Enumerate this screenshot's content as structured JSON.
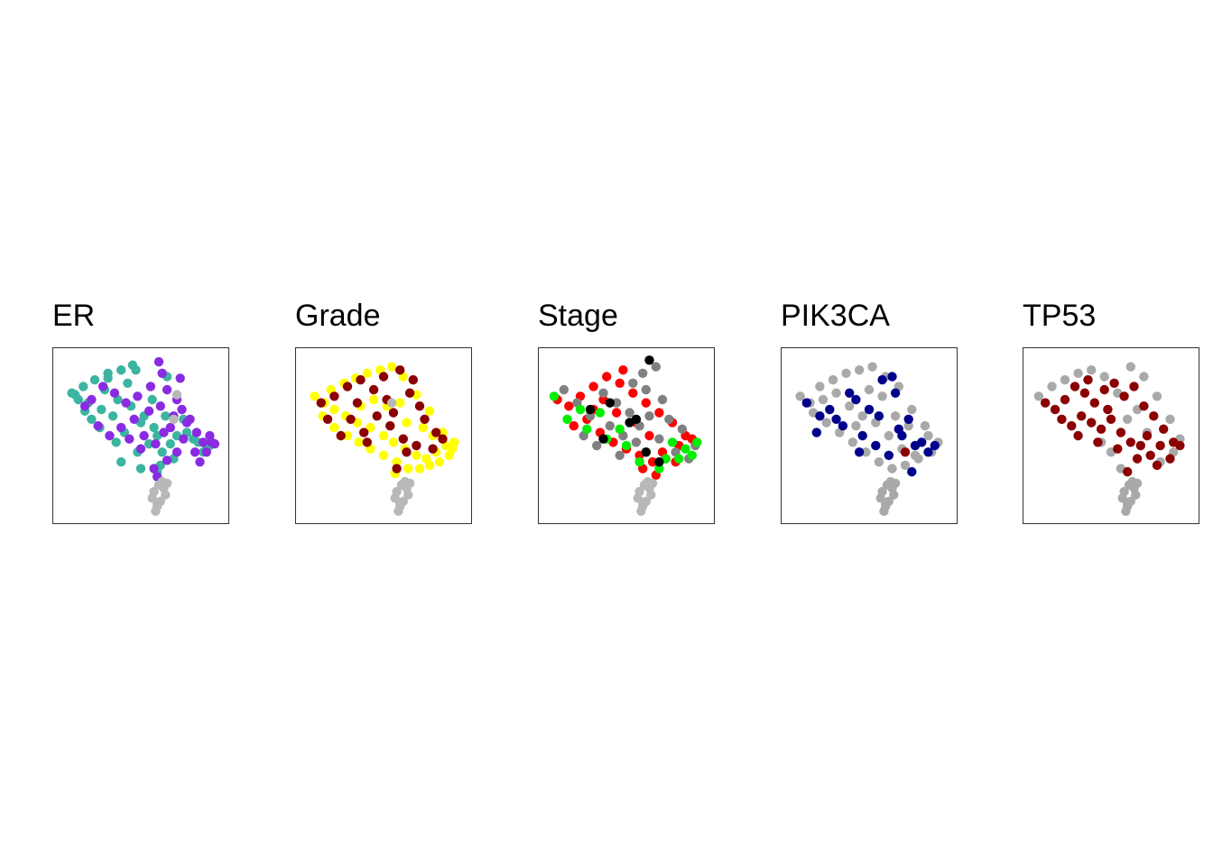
{
  "chart_data": [
    {
      "type": "scatter",
      "title": "ER",
      "xlabel": "",
      "ylabel": "",
      "axes_visible": false,
      "grid": false,
      "legend": "none",
      "series": [
        {
          "color": "#3BB5A0",
          "x": [
            0.1,
            0.15,
            0.22,
            0.3,
            0.38,
            0.45,
            0.18,
            0.26,
            0.33,
            0.5,
            0.58,
            0.2,
            0.12,
            0.28,
            0.36,
            0.44,
            0.52,
            0.6,
            0.25,
            0.4,
            0.55,
            0.63,
            0.68,
            0.48,
            0.35,
            0.72,
            0.78,
            0.82,
            0.65,
            0.57,
            0.3,
            0.42,
            0.7,
            0.85,
            0.9,
            0.62,
            0.5,
            0.38,
            0.16,
            0.08,
            0.47,
            0.66,
            0.76,
            0.88,
            0.92,
            0.6
          ],
          "y": [
            0.75,
            0.8,
            0.84,
            0.88,
            0.9,
            0.93,
            0.7,
            0.66,
            0.62,
            0.58,
            0.55,
            0.6,
            0.72,
            0.78,
            0.72,
            0.68,
            0.62,
            0.5,
            0.55,
            0.52,
            0.45,
            0.4,
            0.45,
            0.4,
            0.46,
            0.5,
            0.52,
            0.48,
            0.62,
            0.72,
            0.85,
            0.82,
            0.36,
            0.46,
            0.42,
            0.32,
            0.3,
            0.34,
            0.65,
            0.76,
            0.9,
            0.86,
            0.6,
            0.4,
            0.44,
            0.28
          ]
        },
        {
          "color": "#8A2BE2",
          "x": [
            0.2,
            0.27,
            0.34,
            0.41,
            0.48,
            0.56,
            0.63,
            0.61,
            0.66,
            0.72,
            0.75,
            0.8,
            0.84,
            0.88,
            0.93,
            0.9,
            0.78,
            0.7,
            0.55,
            0.46,
            0.38,
            0.31,
            0.24,
            0.16,
            0.52,
            0.59,
            0.68,
            0.76,
            0.83,
            0.86,
            0.72,
            0.64,
            0.5,
            0.43,
            0.6,
            0.58,
            0.66,
            0.92,
            0.95,
            0.74,
            0.62
          ],
          "y": [
            0.72,
            0.8,
            0.76,
            0.7,
            0.74,
            0.8,
            0.88,
            0.95,
            0.78,
            0.72,
            0.66,
            0.6,
            0.52,
            0.46,
            0.46,
            0.4,
            0.58,
            0.62,
            0.65,
            0.6,
            0.55,
            0.5,
            0.56,
            0.68,
            0.5,
            0.45,
            0.55,
            0.48,
            0.4,
            0.34,
            0.4,
            0.52,
            0.42,
            0.48,
            0.25,
            0.3,
            0.35,
            0.5,
            0.45,
            0.85,
            0.68
          ]
        },
        {
          "color": "#B8B8B8",
          "x": [
            0.63,
            0.64,
            0.65,
            0.62,
            0.6,
            0.59,
            0.61,
            0.58,
            0.57,
            0.6,
            0.66,
            0.72,
            0.7
          ],
          "y": [
            0.22,
            0.18,
            0.14,
            0.1,
            0.07,
            0.04,
            0.2,
            0.16,
            0.12,
            0.09,
            0.21,
            0.75,
            0.6
          ]
        }
      ]
    },
    {
      "type": "scatter",
      "title": "Grade",
      "xlabel": "",
      "ylabel": "",
      "axes_visible": false,
      "grid": false,
      "legend": "none",
      "series": [
        {
          "color": "#FFFF00",
          "x": [
            0.08,
            0.14,
            0.2,
            0.27,
            0.34,
            0.42,
            0.5,
            0.56,
            0.63,
            0.7,
            0.76,
            0.82,
            0.88,
            0.93,
            0.9,
            0.84,
            0.78,
            0.72,
            0.65,
            0.58,
            0.5,
            0.42,
            0.35,
            0.28,
            0.2,
            0.13,
            0.18,
            0.26,
            0.33,
            0.4,
            0.48,
            0.55,
            0.62,
            0.7,
            0.78,
            0.86,
            0.6,
            0.52,
            0.44,
            0.36,
            0.64,
            0.74,
            0.8,
            0.92,
            0.57
          ],
          "y": [
            0.74,
            0.7,
            0.66,
            0.62,
            0.58,
            0.55,
            0.5,
            0.46,
            0.42,
            0.38,
            0.36,
            0.4,
            0.44,
            0.46,
            0.38,
            0.34,
            0.32,
            0.3,
            0.3,
            0.34,
            0.38,
            0.42,
            0.46,
            0.5,
            0.55,
            0.62,
            0.78,
            0.82,
            0.85,
            0.88,
            0.9,
            0.92,
            0.86,
            0.75,
            0.65,
            0.52,
            0.7,
            0.68,
            0.72,
            0.68,
            0.58,
            0.55,
            0.5,
            0.42,
            0.27
          ]
        },
        {
          "color": "#8B0000",
          "x": [
            0.12,
            0.2,
            0.28,
            0.36,
            0.44,
            0.52,
            0.6,
            0.68,
            0.75,
            0.82,
            0.3,
            0.38,
            0.46,
            0.54,
            0.62,
            0.7,
            0.24,
            0.4,
            0.56,
            0.66,
            0.8,
            0.86,
            0.16,
            0.5,
            0.58,
            0.34,
            0.72,
            0.64
          ],
          "y": [
            0.7,
            0.74,
            0.8,
            0.84,
            0.78,
            0.72,
            0.9,
            0.84,
            0.6,
            0.52,
            0.6,
            0.52,
            0.62,
            0.56,
            0.48,
            0.44,
            0.5,
            0.46,
            0.64,
            0.76,
            0.42,
            0.48,
            0.6,
            0.86,
            0.3,
            0.7,
            0.68,
            0.4
          ]
        },
        {
          "color": "#B8B8B8",
          "x": [
            0.63,
            0.64,
            0.65,
            0.62,
            0.6,
            0.59,
            0.61,
            0.58,
            0.57,
            0.6,
            0.66,
            0.55
          ],
          "y": [
            0.22,
            0.18,
            0.14,
            0.1,
            0.07,
            0.04,
            0.2,
            0.16,
            0.12,
            0.09,
            0.21,
            0.7
          ]
        }
      ]
    },
    {
      "type": "scatter",
      "title": "Stage",
      "xlabel": "",
      "ylabel": "",
      "axes_visible": false,
      "grid": false,
      "legend": "none",
      "series": [
        {
          "color": "#FF0000",
          "x": [
            0.08,
            0.15,
            0.22,
            0.3,
            0.38,
            0.46,
            0.54,
            0.62,
            0.7,
            0.78,
            0.86,
            0.18,
            0.26,
            0.34,
            0.42,
            0.5,
            0.58,
            0.66,
            0.74,
            0.82,
            0.9,
            0.3,
            0.44,
            0.56,
            0.64,
            0.72,
            0.8,
            0.48,
            0.36,
            0.6,
            0.68
          ],
          "y": [
            0.72,
            0.68,
            0.74,
            0.8,
            0.86,
            0.82,
            0.76,
            0.7,
            0.64,
            0.58,
            0.5,
            0.56,
            0.6,
            0.52,
            0.46,
            0.42,
            0.38,
            0.34,
            0.36,
            0.44,
            0.48,
            0.66,
            0.64,
            0.58,
            0.5,
            0.4,
            0.34,
            0.9,
            0.72,
            0.3,
            0.26
          ]
        },
        {
          "color": "#808080",
          "x": [
            0.12,
            0.2,
            0.28,
            0.36,
            0.44,
            0.52,
            0.6,
            0.68,
            0.76,
            0.84,
            0.92,
            0.24,
            0.32,
            0.4,
            0.48,
            0.56,
            0.64,
            0.72,
            0.8,
            0.88,
            0.46,
            0.54,
            0.62,
            0.7,
            0.58
          ],
          "y": [
            0.78,
            0.7,
            0.62,
            0.76,
            0.7,
            0.64,
            0.88,
            0.92,
            0.6,
            0.54,
            0.44,
            0.5,
            0.44,
            0.56,
            0.5,
            0.46,
            0.62,
            0.72,
            0.4,
            0.36,
            0.38,
            0.82,
            0.78,
            0.48,
            0.56
          ]
        },
        {
          "color": "#00EE00",
          "x": [
            0.06,
            0.14,
            0.26,
            0.38,
            0.5,
            0.62,
            0.74,
            0.86,
            0.93,
            0.82,
            0.7,
            0.58,
            0.46,
            0.34,
            0.22,
            0.9,
            0.78
          ],
          "y": [
            0.74,
            0.6,
            0.54,
            0.48,
            0.44,
            0.4,
            0.36,
            0.42,
            0.46,
            0.36,
            0.3,
            0.34,
            0.54,
            0.64,
            0.66,
            0.38,
            0.46
          ]
        },
        {
          "color": "#000000",
          "x": [
            0.28,
            0.4,
            0.52,
            0.56,
            0.64,
            0.7,
            0.36,
            0.62
          ],
          "y": [
            0.66,
            0.7,
            0.58,
            0.6,
            0.96,
            0.34,
            0.48,
            0.4
          ]
        },
        {
          "color": "#B8B8B8",
          "x": [
            0.63,
            0.64,
            0.65,
            0.62,
            0.6,
            0.59,
            0.61,
            0.58,
            0.57,
            0.6,
            0.66
          ],
          "y": [
            0.22,
            0.18,
            0.14,
            0.1,
            0.07,
            0.04,
            0.2,
            0.16,
            0.12,
            0.09,
            0.21
          ]
        }
      ]
    },
    {
      "type": "scatter",
      "title": "PIK3CA",
      "xlabel": "",
      "ylabel": "",
      "axes_visible": false,
      "grid": false,
      "legend": "none",
      "series": [
        {
          "color": "#A9A9A9",
          "x": [
            0.08,
            0.14,
            0.2,
            0.28,
            0.36,
            0.44,
            0.52,
            0.6,
            0.68,
            0.76,
            0.84,
            0.92,
            0.88,
            0.8,
            0.72,
            0.64,
            0.56,
            0.48,
            0.4,
            0.32,
            0.24,
            0.16,
            0.22,
            0.3,
            0.38,
            0.46,
            0.54,
            0.62,
            0.7,
            0.78,
            0.86,
            0.5,
            0.58,
            0.66,
            0.74,
            0.42,
            0.63,
            0.64,
            0.65,
            0.62,
            0.6,
            0.59,
            0.61,
            0.58,
            0.57,
            0.6,
            0.66
          ],
          "y": [
            0.74,
            0.7,
            0.8,
            0.84,
            0.88,
            0.9,
            0.92,
            0.86,
            0.8,
            0.66,
            0.56,
            0.46,
            0.4,
            0.36,
            0.32,
            0.3,
            0.34,
            0.4,
            0.46,
            0.52,
            0.58,
            0.64,
            0.72,
            0.76,
            0.68,
            0.62,
            0.58,
            0.5,
            0.42,
            0.38,
            0.5,
            0.78,
            0.74,
            0.62,
            0.56,
            0.56,
            0.22,
            0.18,
            0.14,
            0.1,
            0.07,
            0.04,
            0.2,
            0.16,
            0.12,
            0.09,
            0.21
          ]
        },
        {
          "color": "#00008B",
          "x": [
            0.12,
            0.2,
            0.26,
            0.34,
            0.42,
            0.5,
            0.58,
            0.66,
            0.74,
            0.82,
            0.9,
            0.18,
            0.3,
            0.46,
            0.54,
            0.62,
            0.7,
            0.78,
            0.86,
            0.38,
            0.56,
            0.64,
            0.76,
            0.44,
            0.68
          ],
          "y": [
            0.7,
            0.62,
            0.66,
            0.56,
            0.72,
            0.66,
            0.84,
            0.76,
            0.6,
            0.46,
            0.44,
            0.52,
            0.6,
            0.5,
            0.44,
            0.38,
            0.5,
            0.44,
            0.4,
            0.76,
            0.62,
            0.86,
            0.28,
            0.4,
            0.54
          ]
        },
        {
          "color": "#8B0000",
          "x": [
            0.72
          ],
          "y": [
            0.4
          ]
        }
      ]
    },
    {
      "type": "scatter",
      "title": "TP53",
      "xlabel": "",
      "ylabel": "",
      "axes_visible": false,
      "grid": false,
      "legend": "none",
      "series": [
        {
          "color": "#A9A9A9",
          "x": [
            0.06,
            0.14,
            0.22,
            0.3,
            0.38,
            0.46,
            0.54,
            0.62,
            0.7,
            0.78,
            0.86,
            0.92,
            0.6,
            0.66,
            0.72,
            0.5,
            0.44,
            0.56,
            0.8,
            0.88,
            0.63,
            0.64,
            0.65,
            0.62,
            0.6,
            0.59,
            0.61,
            0.58,
            0.57,
            0.6,
            0.66
          ],
          "y": [
            0.74,
            0.8,
            0.84,
            0.88,
            0.9,
            0.86,
            0.76,
            0.92,
            0.86,
            0.74,
            0.6,
            0.48,
            0.6,
            0.66,
            0.52,
            0.4,
            0.46,
            0.3,
            0.34,
            0.4,
            0.22,
            0.18,
            0.14,
            0.1,
            0.07,
            0.04,
            0.2,
            0.16,
            0.12,
            0.09,
            0.21
          ]
        },
        {
          "color": "#8B0000",
          "x": [
            0.1,
            0.16,
            0.22,
            0.28,
            0.34,
            0.4,
            0.46,
            0.52,
            0.58,
            0.64,
            0.7,
            0.76,
            0.82,
            0.88,
            0.92,
            0.26,
            0.32,
            0.38,
            0.44,
            0.5,
            0.56,
            0.62,
            0.68,
            0.74,
            0.8,
            0.86,
            0.2,
            0.3,
            0.42,
            0.54,
            0.66,
            0.78,
            0.6,
            0.48,
            0.36,
            0.72
          ],
          "y": [
            0.7,
            0.66,
            0.72,
            0.8,
            0.76,
            0.7,
            0.78,
            0.82,
            0.74,
            0.8,
            0.68,
            0.62,
            0.54,
            0.46,
            0.44,
            0.56,
            0.62,
            0.58,
            0.54,
            0.6,
            0.52,
            0.46,
            0.44,
            0.38,
            0.44,
            0.36,
            0.6,
            0.5,
            0.46,
            0.42,
            0.36,
            0.32,
            0.28,
            0.66,
            0.84,
            0.5
          ]
        }
      ]
    }
  ]
}
